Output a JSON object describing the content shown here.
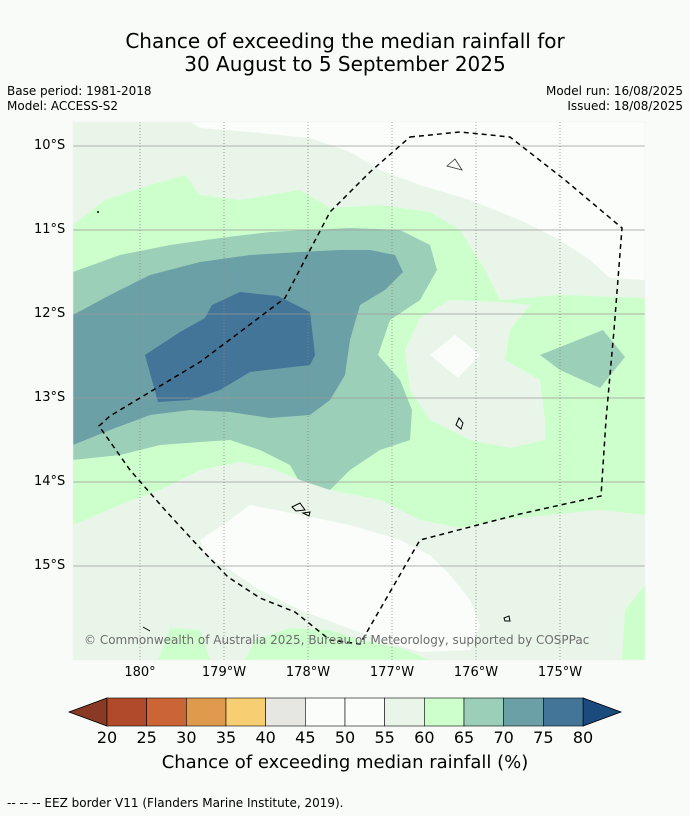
{
  "title": {
    "line1": "Chance of exceeding the median rainfall for",
    "line2": "30 August to 5 September 2025"
  },
  "meta": {
    "base_period": "Base period: 1981-2018",
    "model": "Model: ACCESS-S2",
    "model_run": "Model run: 16/08/2025",
    "issued": "Issued: 18/08/2025"
  },
  "map": {
    "lat_labels": [
      "10°S",
      "11°S",
      "12°S",
      "13°S",
      "14°S",
      "15°S"
    ],
    "lon_labels": [
      "180°",
      "179°W",
      "178°W",
      "177°W",
      "176°W",
      "175°W"
    ],
    "copyright": "© Commonwealth of Australia 2025, Bureau of Meteorology, supported by COSPPac"
  },
  "colorbar": {
    "ticks": [
      "20",
      "25",
      "30",
      "35",
      "40",
      "45",
      "50",
      "55",
      "60",
      "65",
      "70",
      "75",
      "80"
    ],
    "colors": [
      "#b04a2a",
      "#cc6535",
      "#e09a4e",
      "#f8ce72",
      "#e6e7e3",
      "#fbfdfb",
      "#fbfdfb",
      "#eaf5ea",
      "#ccffcc",
      "#9ccfb8",
      "#6ba1a6",
      "#427597"
    ],
    "low_extend_color": "#8a3a24",
    "high_extend_color": "#1b4a7e",
    "label": "Chance of exceeding median rainfall (%)"
  },
  "footer": "-- -- -- EEZ border V11 (Flanders Marine Institute, 2019)."
}
